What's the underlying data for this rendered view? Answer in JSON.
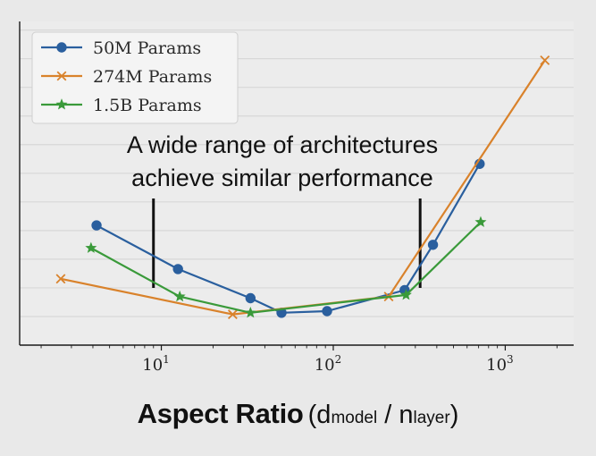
{
  "chart_data": {
    "type": "line",
    "xscale": "log",
    "xlim": [
      1.5,
      2500
    ],
    "ylim": [
      0.0,
      1.0
    ],
    "xlabel": "Aspect Ratio",
    "xlabel_paren_open": "(",
    "xlabel_sub1": "d",
    "xlabel_sub1_small": "model",
    "xlabel_slash": " / ",
    "xlabel_sub2": "n",
    "xlabel_sub2_small": "layer",
    "xlabel_paren_close": ")",
    "ylabel": "",
    "grid": true,
    "legend_position": "top-left",
    "x_ticks": [
      {
        "value": 10,
        "base": "10",
        "exp": "1"
      },
      {
        "value": 100,
        "base": "10",
        "exp": "2"
      },
      {
        "value": 1000,
        "base": "10",
        "exp": "3"
      }
    ],
    "annotation": {
      "line1": "A wide range of architectures",
      "line2": "achieve similar performance",
      "range": [
        9.0,
        320
      ]
    },
    "series": [
      {
        "name": "50M Params",
        "color": "#2a5f9e",
        "marker": "circle",
        "points": [
          [
            4.2,
            0.37
          ],
          [
            12.5,
            0.235
          ],
          [
            33,
            0.145
          ],
          [
            50,
            0.1
          ],
          [
            92,
            0.105
          ],
          [
            260,
            0.17
          ],
          [
            380,
            0.31
          ],
          [
            710,
            0.56
          ]
        ]
      },
      {
        "name": "274M Params",
        "color": "#d9822b",
        "marker": "x",
        "points": [
          [
            2.6,
            0.205
          ],
          [
            26,
            0.095
          ],
          [
            210,
            0.15
          ],
          [
            1700,
            0.88
          ]
        ]
      },
      {
        "name": "1.5B Params",
        "color": "#3a9a3a",
        "marker": "star",
        "points": [
          [
            3.9,
            0.3
          ],
          [
            12.8,
            0.15
          ],
          [
            33,
            0.1
          ],
          [
            265,
            0.155
          ],
          [
            720,
            0.38
          ]
        ]
      }
    ]
  }
}
